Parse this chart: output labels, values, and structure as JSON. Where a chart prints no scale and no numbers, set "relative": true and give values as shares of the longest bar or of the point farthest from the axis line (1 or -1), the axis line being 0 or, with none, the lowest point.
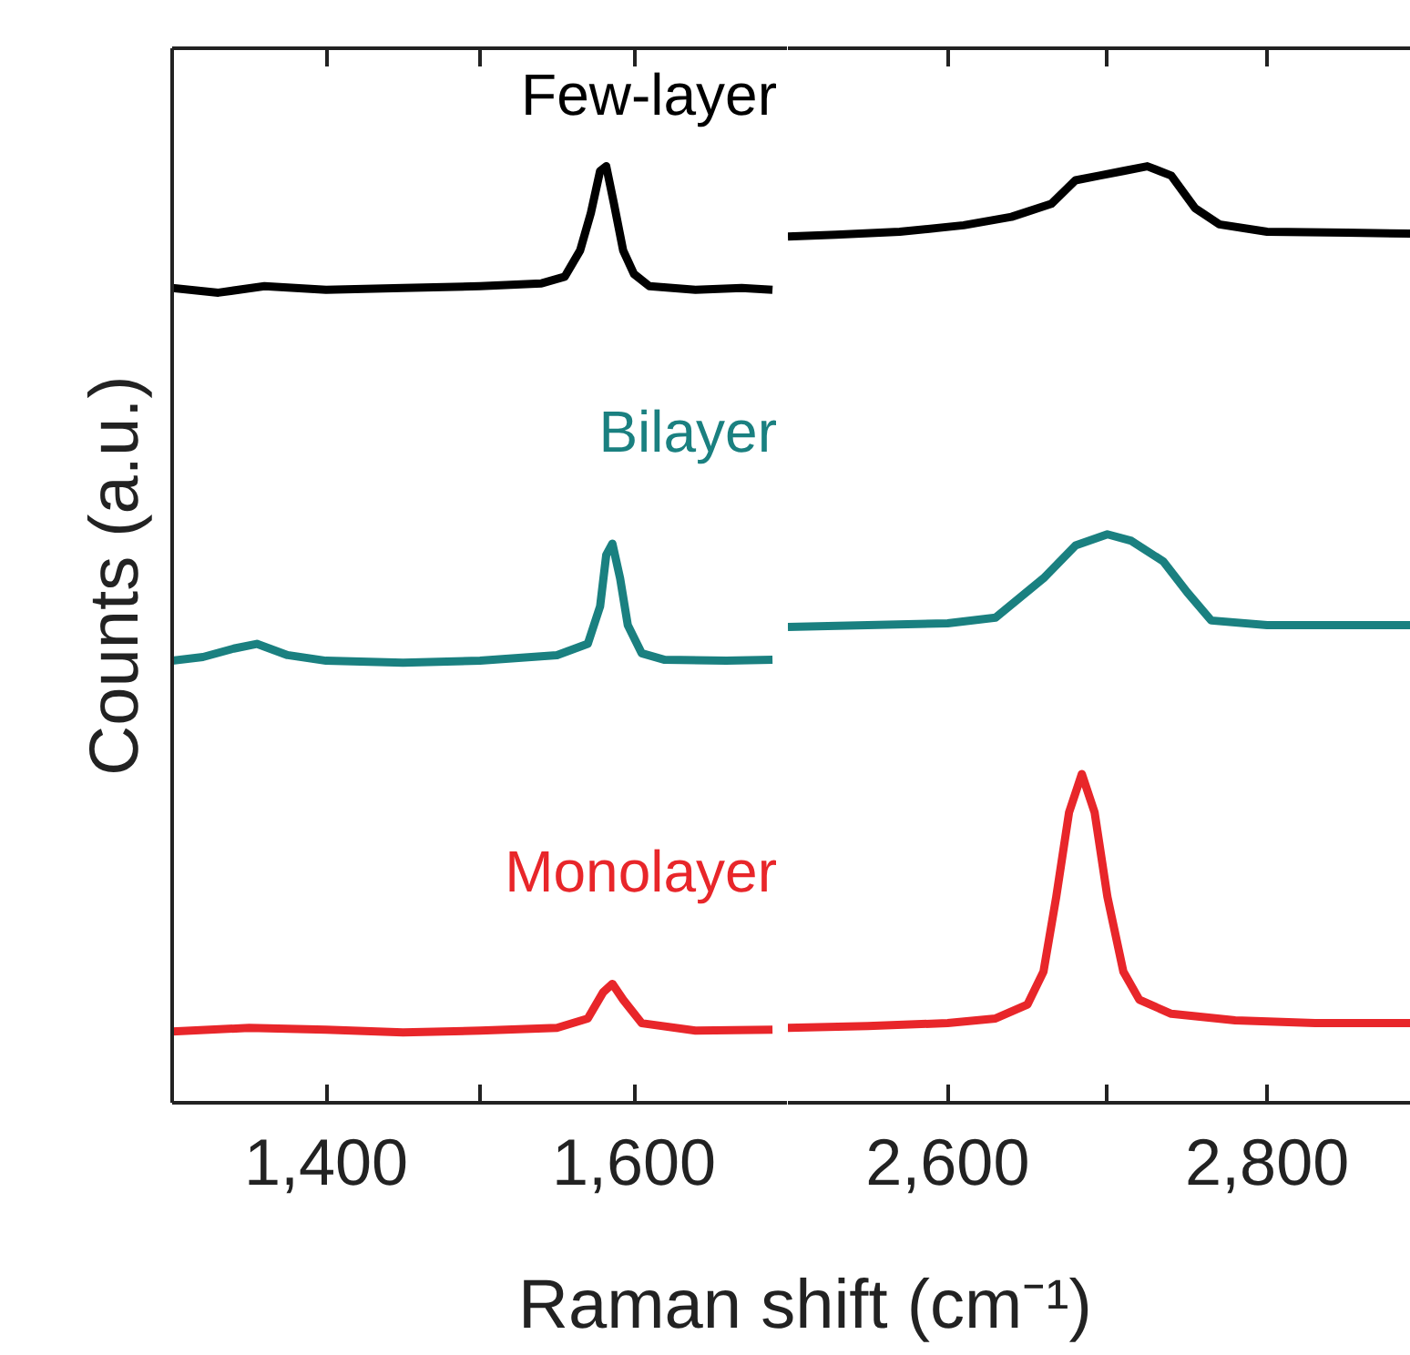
{
  "chart_data": [
    {
      "type": "line",
      "relative": true,
      "xlabel": "Raman shift (cm⁻¹)",
      "ylabel": "Counts (a.u.)",
      "tick_labels": "x",
      "xlim": [
        1300,
        1700
      ],
      "xticks": [
        {
          "value": 1400,
          "label": "1,400"
        },
        {
          "value": 1500,
          "label": null
        },
        {
          "value": 1600,
          "label": "1,600"
        }
      ],
      "series": [
        {
          "name": "Few-layer",
          "color": "#000000",
          "x": [
            1300,
            1330,
            1360,
            1400,
            1450,
            1500,
            1540,
            1555,
            1565,
            1572,
            1578,
            1582,
            1587,
            1593,
            1600,
            1610,
            1640,
            1670,
            1690
          ],
          "values": [
            0.87,
            0.865,
            0.872,
            0.868,
            0.87,
            0.872,
            0.875,
            0.882,
            0.91,
            0.95,
            0.995,
            1.0,
            0.96,
            0.91,
            0.885,
            0.872,
            0.868,
            0.87,
            0.868
          ]
        },
        {
          "name": "Bilayer",
          "color": "#1a8080",
          "x": [
            1300,
            1320,
            1340,
            1355,
            1375,
            1400,
            1450,
            1500,
            1550,
            1570,
            1578,
            1582,
            1586,
            1591,
            1596,
            1605,
            1620,
            1660,
            1690
          ],
          "values": [
            0.472,
            0.476,
            0.485,
            0.49,
            0.478,
            0.472,
            0.47,
            0.472,
            0.478,
            0.49,
            0.53,
            0.585,
            0.597,
            0.56,
            0.51,
            0.48,
            0.473,
            0.472,
            0.473
          ]
        },
        {
          "name": "Monolayer",
          "color": "#e8262a",
          "x": [
            1300,
            1350,
            1400,
            1450,
            1500,
            1550,
            1570,
            1580,
            1586,
            1593,
            1605,
            1640,
            1690
          ],
          "values": [
            0.076,
            0.08,
            0.078,
            0.075,
            0.077,
            0.08,
            0.09,
            0.118,
            0.127,
            0.11,
            0.085,
            0.077,
            0.078
          ]
        }
      ]
    },
    {
      "type": "line",
      "relative": true,
      "tick_labels": "x",
      "xlim": [
        2500,
        2890
      ],
      "xticks": [
        {
          "value": 2600,
          "label": "2,600"
        },
        {
          "value": 2700,
          "label": null
        },
        {
          "value": 2800,
          "label": "2,800"
        }
      ],
      "series": [
        {
          "color": "#000000",
          "x": [
            2500,
            2530,
            2570,
            2610,
            2640,
            2665,
            2680,
            2695,
            2710,
            2725,
            2740,
            2755,
            2770,
            2800,
            2850,
            2890
          ],
          "values": [
            0.925,
            0.927,
            0.93,
            0.937,
            0.946,
            0.96,
            0.985,
            0.99,
            0.995,
            1.0,
            0.99,
            0.955,
            0.938,
            0.93,
            0.929,
            0.928
          ]
        },
        {
          "color": "#1a8080",
          "x": [
            2500,
            2550,
            2600,
            2630,
            2660,
            2680,
            2700,
            2715,
            2735,
            2750,
            2765,
            2800,
            2850,
            2890
          ],
          "values": [
            0.508,
            0.51,
            0.512,
            0.518,
            0.56,
            0.595,
            0.607,
            0.6,
            0.578,
            0.545,
            0.515,
            0.51,
            0.51,
            0.51
          ]
        },
        {
          "color": "#e8262a",
          "x": [
            2500,
            2550,
            2600,
            2630,
            2650,
            2660,
            2668,
            2676,
            2684,
            2692,
            2700,
            2710,
            2720,
            2740,
            2780,
            2830,
            2890
          ],
          "values": [
            0.08,
            0.082,
            0.085,
            0.09,
            0.105,
            0.14,
            0.22,
            0.31,
            0.351,
            0.31,
            0.22,
            0.14,
            0.11,
            0.095,
            0.088,
            0.085,
            0.085
          ]
        }
      ]
    }
  ]
}
